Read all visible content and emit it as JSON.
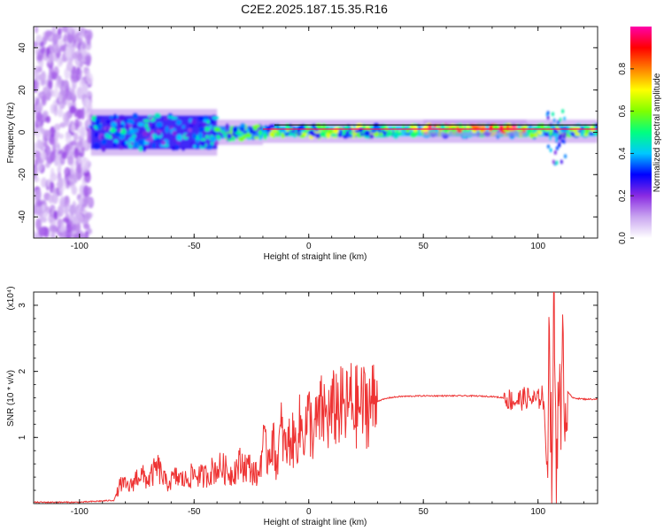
{
  "title": "C2E2.2025.187.15.35.R16",
  "chart_data": [
    {
      "type": "heatmap",
      "xlabel": "Height of straight line (km)",
      "ylabel": "Frequency (Hz)",
      "xlim": [
        -120,
        126
      ],
      "ylim": [
        -50,
        50
      ],
      "x_ticks": [
        -100,
        -50,
        0,
        50,
        100
      ],
      "y_ticks": [
        -40,
        -20,
        0,
        20,
        40
      ],
      "colorbar": {
        "label": "Normalized spectral amplitude",
        "range": [
          0,
          1
        ],
        "ticks": [
          "0.0",
          "0.2",
          "0.4",
          "0.6",
          "0.8"
        ],
        "tick_values": [
          0,
          0.2,
          0.4,
          0.6,
          0.8
        ],
        "colormap": [
          "#ffffff",
          "#c9a5f0",
          "#8a2be2",
          "#0000ff",
          "#00c8ff",
          "#00ff80",
          "#80ff00",
          "#ffff00",
          "#ff8000",
          "#ff0000",
          "#ff00aa"
        ]
      },
      "regions": [
        {
          "x_range": [
            -120,
            -95
          ],
          "freq_range": [
            -50,
            50
          ],
          "amplitude": 0.15,
          "description_type": "noise"
        },
        {
          "x_range": [
            -95,
            -40
          ],
          "freq_range": [
            -8,
            8
          ],
          "amplitude": 0.35
        },
        {
          "x_range": [
            -40,
            -20
          ],
          "freq_range": [
            -3,
            3
          ],
          "amplitude": 0.45
        },
        {
          "x_range": [
            -20,
            126
          ],
          "freq_range": [
            -2,
            3
          ],
          "amplitude": 0.5
        },
        {
          "x_range": [
            50,
            95
          ],
          "freq_range": [
            1,
            3
          ],
          "amplitude": 0.75
        },
        {
          "x_range": [
            104,
            112
          ],
          "freq_range": [
            -15,
            10
          ],
          "amplitude": 0.3
        }
      ]
    },
    {
      "type": "line",
      "xlabel": "Height of straight line (km)",
      "ylabel": "SNR (10 * v/v)",
      "y_multiplier": "(x10⁴)",
      "xlim": [
        -120,
        126
      ],
      "ylim": [
        0,
        3.2
      ],
      "x_ticks": [
        -100,
        -50,
        0,
        50,
        100
      ],
      "y_ticks": [
        1,
        2,
        3
      ],
      "color": "#ee3333",
      "series": [
        {
          "x": [
            -120,
            -100,
            -85,
            -82,
            -78,
            -74,
            -70,
            -66,
            -62,
            -58,
            -54,
            -50,
            -46,
            -42,
            -38,
            -34,
            -30,
            -26,
            -22,
            -20,
            -18,
            -16,
            -14,
            -12,
            -10,
            -8,
            -6,
            -4,
            -2,
            0,
            2,
            4,
            6,
            8,
            10,
            12,
            14,
            16,
            18,
            20,
            25,
            30,
            35,
            40,
            50,
            60,
            70,
            80,
            85,
            90,
            95,
            100,
            102,
            104,
            105,
            106,
            107,
            108,
            109,
            110,
            111,
            112,
            113,
            115,
            120,
            126
          ],
          "y": [
            0.02,
            0.02,
            0.05,
            0.3,
            0.25,
            0.45,
            0.35,
            0.55,
            0.3,
            0.4,
            0.35,
            0.45,
            0.4,
            0.5,
            0.55,
            0.45,
            0.6,
            0.55,
            0.4,
            0.9,
            0.7,
            1.0,
            0.6,
            1.1,
            0.8,
            1.0,
            0.9,
            1.15,
            1.1,
            1.3,
            1.05,
            1.25,
            1.4,
            1.3,
            1.35,
            1.5,
            1.45,
            1.4,
            1.55,
            1.45,
            1.5,
            1.55,
            1.6,
            1.62,
            1.63,
            1.63,
            1.63,
            1.62,
            1.6,
            1.55,
            1.6,
            1.55,
            1.7,
            0.6,
            2.8,
            0.3,
            3.2,
            0.4,
            2.2,
            0.8,
            2.6,
            1.2,
            1.7,
            1.6,
            1.58,
            1.58
          ]
        }
      ]
    }
  ]
}
